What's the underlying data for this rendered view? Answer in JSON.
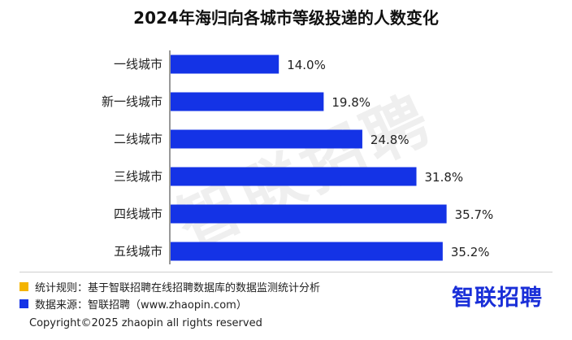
{
  "colors": {
    "bar": "#1433e6",
    "note_rule_marker": "#f4b400",
    "note_source_marker": "#1433e6",
    "brand": "#1a2fd8"
  },
  "chart_data": {
    "type": "bar",
    "orientation": "horizontal",
    "title": "2024年海归向各城市等级投递的人数变化",
    "categories": [
      "一线城市",
      "新一线城市",
      "二线城市",
      "三线城市",
      "四线城市",
      "五线城市"
    ],
    "values": [
      14.0,
      19.8,
      24.8,
      31.8,
      35.7,
      35.2
    ],
    "value_labels": [
      "14.0%",
      "19.8%",
      "24.8%",
      "31.8%",
      "35.7%",
      "35.2%"
    ],
    "unit": "%",
    "xlim": [
      0,
      37
    ],
    "grid": false,
    "legend": "none"
  },
  "watermark": "智联招聘",
  "notes": {
    "rule": "统计规则：基于智联招聘在线招聘数据库的数据监测统计分析",
    "source": "数据来源：智联招聘（www.zhaopin.com）"
  },
  "brand": "智联招聘",
  "copyright": "Copyright©2025 zhaopin all rights reserved"
}
